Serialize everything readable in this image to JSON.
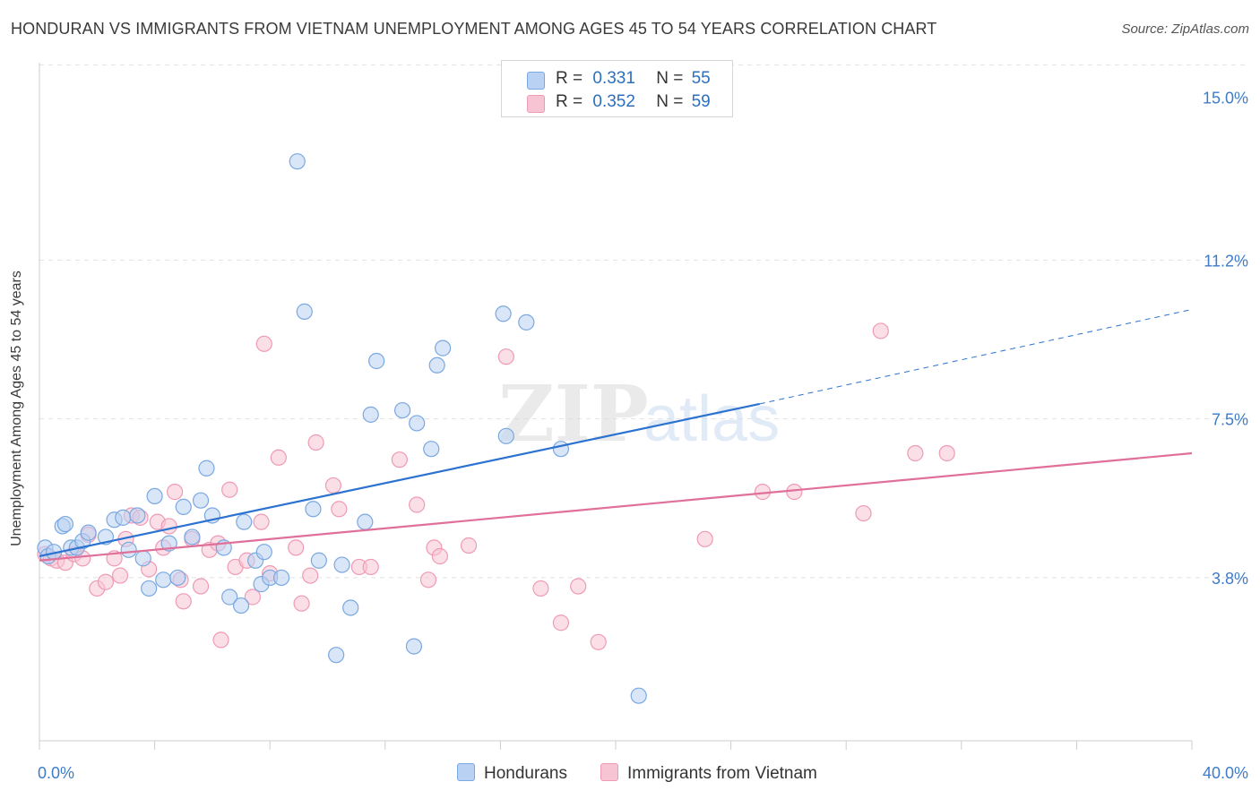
{
  "title": "HONDURAN VS IMMIGRANTS FROM VIETNAM UNEMPLOYMENT AMONG AGES 45 TO 54 YEARS CORRELATION CHART",
  "source": "Source: ZipAtlas.com",
  "colors": {
    "blue": "#7aa8e0",
    "blue_fill": "#b9d1f2",
    "blue_line": "#2c72d0",
    "pink": "#ef9ab5",
    "pink_fill": "#f7c4d4",
    "pink_line": "#e0709a",
    "axis_label": "#3e7cc9"
  },
  "legend": {
    "rows": [
      {
        "r_label": "R =",
        "r_value": "0.331",
        "n_label": "N =",
        "n_value": "55"
      },
      {
        "r_label": "R =",
        "r_value": "0.352",
        "n_label": "N =",
        "n_value": "59"
      }
    ]
  },
  "bottom_legend": {
    "series1": "Hondurans",
    "series2": "Immigrants from Vietnam"
  },
  "watermark": {
    "zip": "ZIP",
    "atlas": "atlas"
  },
  "chart_data": {
    "type": "scatter",
    "title": "HONDURAN VS IMMIGRANTS FROM VIETNAM UNEMPLOYMENT AMONG AGES 45 TO 54 YEARS CORRELATION CHART",
    "xlabel": "",
    "ylabel": "Unemployment Among Ages 45 to 54 years",
    "xlim": [
      0,
      40
    ],
    "ylim": [
      0,
      15.8
    ],
    "x_tick_labels": [
      "0.0%",
      "40.0%"
    ],
    "y_ticks": [
      3.8,
      7.5,
      11.2,
      15.0
    ],
    "y_tick_labels": [
      "3.8%",
      "7.5%",
      "11.2%",
      "15.0%"
    ],
    "grid": true,
    "series": [
      {
        "name": "Hondurans",
        "color": "blue",
        "points": [
          [
            0.2,
            4.5
          ],
          [
            0.3,
            4.3
          ],
          [
            0.5,
            4.4
          ],
          [
            0.8,
            5.0
          ],
          [
            0.9,
            5.05
          ],
          [
            1.1,
            4.5
          ],
          [
            1.3,
            4.5
          ],
          [
            1.5,
            4.65
          ],
          [
            1.7,
            4.85
          ],
          [
            2.3,
            4.75
          ],
          [
            2.6,
            5.15
          ],
          [
            2.9,
            5.2
          ],
          [
            3.1,
            4.45
          ],
          [
            3.4,
            5.25
          ],
          [
            3.6,
            4.25
          ],
          [
            3.8,
            3.55
          ],
          [
            4.0,
            5.7
          ],
          [
            4.3,
            3.75
          ],
          [
            4.5,
            4.6
          ],
          [
            4.8,
            3.8
          ],
          [
            5.0,
            5.45
          ],
          [
            5.3,
            4.75
          ],
          [
            5.6,
            5.6
          ],
          [
            5.8,
            6.35
          ],
          [
            6.0,
            5.25
          ],
          [
            6.4,
            4.5
          ],
          [
            6.6,
            3.35
          ],
          [
            7.0,
            3.15
          ],
          [
            7.1,
            5.1
          ],
          [
            7.5,
            4.2
          ],
          [
            7.7,
            3.65
          ],
          [
            7.8,
            4.4
          ],
          [
            8.0,
            3.8
          ],
          [
            8.4,
            3.8
          ],
          [
            8.95,
            13.5
          ],
          [
            9.2,
            10.0
          ],
          [
            9.5,
            5.4
          ],
          [
            9.7,
            4.2
          ],
          [
            10.3,
            2.0
          ],
          [
            10.5,
            4.1
          ],
          [
            10.8,
            3.1
          ],
          [
            11.3,
            5.1
          ],
          [
            11.5,
            7.6
          ],
          [
            11.7,
            8.85
          ],
          [
            12.6,
            7.7
          ],
          [
            13.1,
            7.4
          ],
          [
            13.0,
            2.2
          ],
          [
            13.6,
            6.8
          ],
          [
            13.8,
            8.75
          ],
          [
            14.0,
            9.15
          ],
          [
            16.1,
            9.95
          ],
          [
            16.2,
            7.1
          ],
          [
            16.9,
            9.75
          ],
          [
            18.1,
            6.8
          ],
          [
            20.8,
            1.05
          ]
        ],
        "trend": {
          "x": [
            0,
            25
          ],
          "y": [
            4.3,
            7.85
          ],
          "extended_to": [
            40,
            10.05
          ]
        }
      },
      {
        "name": "Immigrants from Vietnam",
        "color": "pink",
        "points": [
          [
            0.2,
            4.35
          ],
          [
            0.4,
            4.25
          ],
          [
            0.6,
            4.2
          ],
          [
            0.9,
            4.15
          ],
          [
            1.2,
            4.35
          ],
          [
            1.5,
            4.25
          ],
          [
            1.7,
            4.8
          ],
          [
            2.0,
            3.55
          ],
          [
            2.3,
            3.7
          ],
          [
            2.6,
            4.25
          ],
          [
            2.8,
            3.85
          ],
          [
            3.0,
            4.7
          ],
          [
            3.2,
            5.25
          ],
          [
            3.5,
            5.2
          ],
          [
            3.8,
            4.0
          ],
          [
            4.1,
            5.1
          ],
          [
            4.3,
            4.5
          ],
          [
            4.5,
            5.0
          ],
          [
            4.7,
            5.8
          ],
          [
            4.9,
            3.75
          ],
          [
            5.0,
            3.25
          ],
          [
            5.3,
            4.7
          ],
          [
            5.6,
            3.6
          ],
          [
            5.9,
            4.45
          ],
          [
            6.2,
            4.6
          ],
          [
            6.3,
            2.35
          ],
          [
            6.6,
            5.85
          ],
          [
            6.8,
            4.05
          ],
          [
            7.2,
            4.2
          ],
          [
            7.4,
            3.35
          ],
          [
            7.7,
            5.1
          ],
          [
            7.8,
            9.25
          ],
          [
            8.0,
            3.9
          ],
          [
            8.3,
            6.6
          ],
          [
            8.9,
            4.5
          ],
          [
            9.1,
            3.2
          ],
          [
            9.4,
            3.85
          ],
          [
            9.6,
            6.95
          ],
          [
            10.2,
            5.95
          ],
          [
            10.4,
            5.4
          ],
          [
            11.1,
            4.05
          ],
          [
            11.5,
            4.05
          ],
          [
            12.5,
            6.55
          ],
          [
            13.1,
            5.5
          ],
          [
            13.5,
            3.75
          ],
          [
            13.7,
            4.5
          ],
          [
            13.9,
            4.3
          ],
          [
            14.9,
            4.55
          ],
          [
            16.2,
            8.95
          ],
          [
            17.4,
            3.55
          ],
          [
            18.1,
            2.75
          ],
          [
            18.7,
            3.6
          ],
          [
            19.4,
            2.3
          ],
          [
            23.1,
            4.7
          ],
          [
            25.1,
            5.8
          ],
          [
            26.2,
            5.8
          ],
          [
            28.6,
            5.3
          ],
          [
            29.2,
            9.55
          ],
          [
            30.4,
            6.7
          ],
          [
            31.5,
            6.7
          ]
        ],
        "trend": {
          "x": [
            0,
            40
          ],
          "y": [
            4.2,
            6.7
          ]
        }
      }
    ]
  }
}
